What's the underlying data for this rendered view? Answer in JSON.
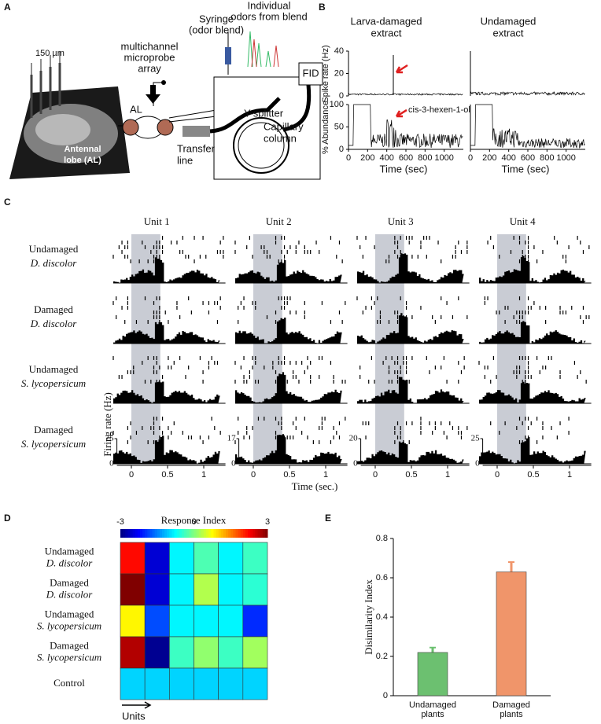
{
  "panel_labels": [
    "A",
    "B",
    "C",
    "D",
    "E"
  ],
  "a": {
    "scale": "150 µm",
    "lobe": [
      "Antennal",
      "lobe (AL)"
    ],
    "array": [
      "multichannel",
      "microprobe",
      "array"
    ],
    "al": "AL",
    "syringe": [
      "Syringe",
      "(odor blend)"
    ],
    "odors": [
      "Individual",
      "odors from blend"
    ],
    "fid": "FID",
    "splitter": "Y-splitter",
    "transfer": [
      "Transfer",
      "line"
    ],
    "column": [
      "Capillary",
      "column"
    ]
  },
  "b": {
    "titles": [
      [
        "Larva-damaged",
        "extract"
      ],
      [
        "Undamaged",
        "extract"
      ]
    ],
    "ylabel_top": "Spike rate (Hz)",
    "ylabel_bottom": "% Abundance",
    "xlabel": "Time (sec)",
    "annotation": "cis-3-hexen-1-ol",
    "xlim": [
      0,
      1200
    ],
    "xticks": [
      0,
      200,
      400,
      600,
      800,
      1000
    ],
    "ylim_top": [
      0,
      40
    ],
    "yticks_top": [
      0,
      20,
      40
    ],
    "ylim_bottom": [
      0,
      100
    ],
    "yticks_bottom": [
      0,
      50,
      100
    ]
  },
  "c": {
    "units": [
      "Unit 1",
      "Unit 2",
      "Unit 3",
      "Unit 4"
    ],
    "rows": [
      [
        "Undamaged",
        "D. discolor"
      ],
      [
        "Damaged",
        "D. discolor"
      ],
      [
        "Undamaged",
        "S. lycopersicum"
      ],
      [
        "Damaged",
        "S. lycopersicum"
      ]
    ],
    "ylabel": "Firing rate (Hz)",
    "xlabel": "Time (sec.)",
    "xlim": [
      -0.25,
      1.3
    ],
    "xticks": [
      0,
      0.5,
      1
    ],
    "stimulus": [
      0,
      0.4
    ],
    "ymax": [
      75,
      17,
      20,
      25
    ],
    "ymin": [
      0,
      0,
      0,
      0
    ]
  },
  "d": {
    "title": "Response Index",
    "colorbar_ticks": [
      -3,
      0,
      3
    ],
    "clim": [
      -3,
      3
    ],
    "colormap": "jet",
    "rows": [
      [
        "Undamaged",
        "D. discolor"
      ],
      [
        "Damaged",
        "D. discolor"
      ],
      [
        "Undamaged",
        "S. lycopersicum"
      ],
      [
        "Damaged",
        "S. lycopersicum"
      ],
      [
        "Control"
      ]
    ],
    "values": [
      [
        2.2,
        -2.5,
        -0.8,
        -0.3,
        -0.8,
        -0.4
      ],
      [
        3.0,
        -2.5,
        -0.8,
        0.3,
        -0.8,
        -0.5
      ],
      [
        0.8,
        -1.8,
        -0.8,
        -0.8,
        -0.8,
        -2.0
      ],
      [
        2.7,
        -2.9,
        -0.4,
        0.1,
        -0.4,
        0.2
      ],
      [
        -1.0,
        -1.0,
        -1.0,
        -1.0,
        -1.0,
        -1.0
      ]
    ],
    "xlabel": "Units"
  },
  "e": {
    "type": "bar",
    "ylabel": "Disimilarity Index",
    "categories": [
      [
        "Undamaged",
        "plants"
      ],
      [
        "Damaged",
        "plants"
      ]
    ],
    "values": [
      0.22,
      0.63
    ],
    "errors": [
      0.025,
      0.05
    ],
    "colors": [
      "#6cc070",
      "#f0956a"
    ],
    "ylim": [
      0,
      0.8
    ],
    "yticks": [
      0,
      0.2,
      0.4,
      0.6,
      0.8
    ]
  }
}
